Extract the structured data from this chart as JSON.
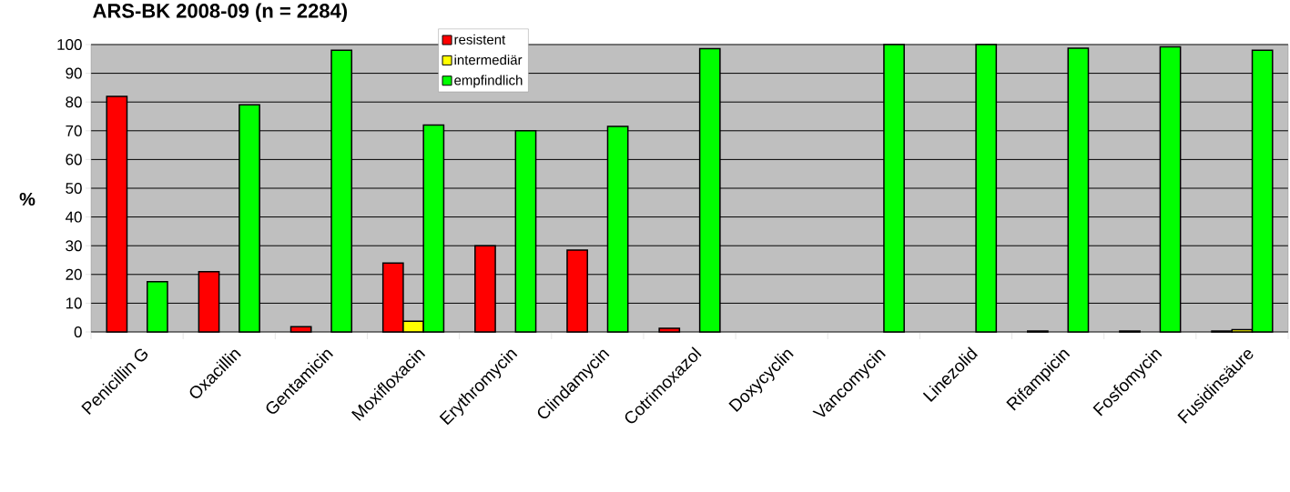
{
  "chart_data": {
    "type": "bar",
    "title": "ARS-BK 2008-09 (n = 2284)",
    "ylabel": "%",
    "categories": [
      "Penicillin G",
      "Oxacillin",
      "Gentamicin",
      "Moxifloxacin",
      "Erythromycin",
      "Clindamycin",
      "Cotrimoxazol",
      "Doxycyclin",
      "Vancomycin",
      "Linezolid",
      "Rifampicin",
      "Fosfomycin",
      "Fusidinsäure"
    ],
    "series": [
      {
        "name": "resistent",
        "color": "#ff0000",
        "values": [
          82,
          21,
          1.8,
          24,
          30,
          28.5,
          1.3,
          null,
          null,
          null,
          0.3,
          0.3,
          0.3
        ]
      },
      {
        "name": "intermediär",
        "color": "#ffff00",
        "values": [
          null,
          null,
          null,
          3.7,
          null,
          null,
          null,
          null,
          null,
          null,
          null,
          null,
          0.8
        ]
      },
      {
        "name": "empfindlich",
        "color": "#00ff00",
        "values": [
          17.5,
          79,
          98,
          72,
          70,
          71.5,
          98.6,
          null,
          100,
          100,
          98.7,
          99.2,
          98
        ]
      }
    ],
    "ylim": [
      0,
      100
    ],
    "yticks": [
      0,
      10,
      20,
      30,
      40,
      50,
      60,
      70,
      80,
      90,
      100
    ],
    "grid": "y",
    "legend": "top"
  }
}
